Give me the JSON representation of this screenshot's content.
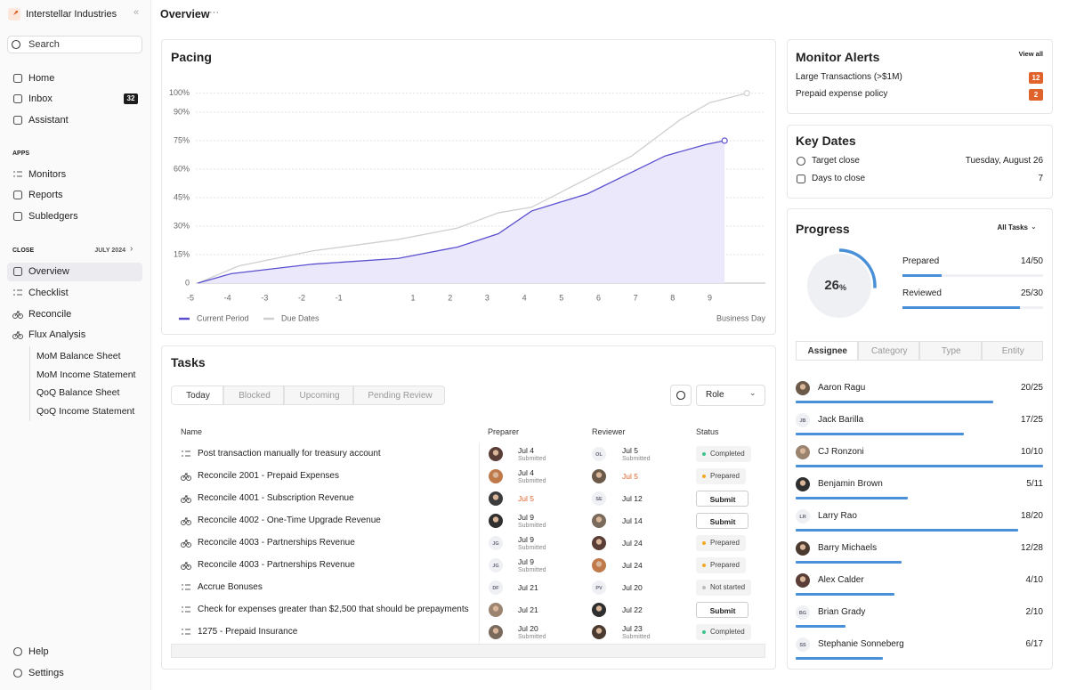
{
  "sidebar": {
    "org": "Interstellar Industries",
    "search": "Search",
    "nav": [
      {
        "label": "Home"
      },
      {
        "label": "Inbox",
        "badge": "32"
      },
      {
        "label": "Assistant"
      }
    ],
    "apps_heading": "APPS",
    "apps": [
      "Monitors",
      "Reports",
      "Subledgers"
    ],
    "close_heading": "CLOSE",
    "close_period": "JULY 2024",
    "close_items": [
      {
        "label": "Overview",
        "active": true
      },
      {
        "label": "Checklist"
      },
      {
        "label": "Reconcile"
      },
      {
        "label": "Flux Analysis"
      }
    ],
    "flux_reports": [
      "MoM Balance Sheet",
      "MoM Income Statement",
      "QoQ Balance Sheet",
      "QoQ Income Statement"
    ],
    "footer": [
      "Help",
      "Settings"
    ]
  },
  "header": {
    "title": "Overview"
  },
  "chart_data": {
    "type": "line",
    "title": "Pacing",
    "x_label": "Business Day",
    "xlim": [
      -5,
      10.5
    ],
    "xticks": [
      -5,
      -4,
      -3,
      -2,
      -1,
      1,
      2,
      3,
      4,
      5,
      6,
      7,
      8,
      9
    ],
    "ylim": [
      0,
      105
    ],
    "yticks": [
      0,
      {
        "value": 15,
        "label": "15%"
      },
      {
        "value": 30,
        "label": "30%"
      },
      {
        "value": 45,
        "label": "45%"
      },
      {
        "value": 60,
        "label": "60%"
      },
      {
        "value": 75,
        "label": "75%"
      },
      {
        "value": 90,
        "label": "90%"
      },
      {
        "value": 100,
        "label": "100%"
      }
    ],
    "grid": true,
    "series": [
      {
        "name": "Current Period",
        "color": "#5b4fcf",
        "fill": "#ebe8fb",
        "x": [
          -4.8,
          -3.9,
          -1.7,
          0.6,
          2.2,
          3.3,
          4.2,
          5.7,
          7.8,
          8.9,
          9.4
        ],
        "values": [
          0,
          5,
          10,
          13,
          19,
          26,
          38,
          47,
          67,
          73,
          75
        ]
      },
      {
        "name": "Due Dates",
        "color": "#cfcfcf",
        "x": [
          -4.8,
          -3.7,
          -1.7,
          0.6,
          2.2,
          3.3,
          4.2,
          5.2,
          6.9,
          8.2,
          9,
          10
        ],
        "values": [
          0,
          9,
          17,
          23,
          29,
          37,
          40,
          50,
          67,
          86,
          95,
          100
        ]
      }
    ]
  },
  "tasks": {
    "title": "Tasks",
    "tabs": [
      {
        "label": "Today",
        "active": true
      },
      {
        "label": "Blocked"
      },
      {
        "label": "Upcoming"
      },
      {
        "label": "Pending Review"
      }
    ],
    "role": "Role",
    "columns": [
      "Name",
      "Preparer",
      "Reviewer",
      "Status"
    ],
    "rows": [
      {
        "name": "Post transaction manually for treasury account",
        "icon": "checklist",
        "preparer": {
          "date": "Jul 4",
          "note": "Submitted"
        },
        "reviewer": {
          "initials": "OL",
          "date": "Jul 5",
          "note": "Submitted"
        },
        "status": {
          "label": "Completed",
          "dot": "#3cc48f"
        }
      },
      {
        "name": "Reconcile 2001 - Prepaid Expenses",
        "icon": "reconcile",
        "preparer": {
          "date": "Jul 4",
          "note": "Submitted"
        },
        "reviewer": {
          "date": "Jul 5",
          "color": "#e0632b"
        },
        "status": {
          "label": "Prepared",
          "dot": "#f5a623"
        }
      },
      {
        "name": "Reconcile 4001 - Subscription Revenue",
        "icon": "reconcile",
        "preparer": {
          "date": "Jul 5",
          "color": "#e0632b"
        },
        "reviewer": {
          "initials": "SE",
          "date": "Jul 12"
        },
        "status": {
          "label": "Submit",
          "button": true
        }
      },
      {
        "name": "Reconcile 4002 - One-Time Upgrade Revenue",
        "icon": "reconcile",
        "preparer": {
          "date": "Jul 9",
          "note": "Submitted"
        },
        "reviewer": {
          "date": "Jul 14"
        },
        "status": {
          "label": "Submit",
          "button": true
        }
      },
      {
        "name": "Reconcile 4003 - Partnerships Revenue",
        "icon": "reconcile",
        "preparer": {
          "initials": "JG",
          "date": "Jul 9",
          "note": "Submitted"
        },
        "reviewer": {
          "date": "Jul 24"
        },
        "status": {
          "label": "Prepared",
          "dot": "#f5a623"
        }
      },
      {
        "name": "Reconcile 4003 - Partnerships Revenue",
        "icon": "reconcile",
        "preparer": {
          "initials": "JG",
          "date": "Jul 9",
          "note": "Submitted"
        },
        "reviewer": {
          "date": "Jul 24"
        },
        "status": {
          "label": "Prepared",
          "dot": "#f5a623"
        }
      },
      {
        "name": "Accrue Bonuses",
        "icon": "checklist",
        "preparer": {
          "initials": "DF",
          "date": "Jul 21"
        },
        "reviewer": {
          "initials": "PV",
          "date": "Jul 20"
        },
        "status": {
          "label": "Not started",
          "dot": "#bdbdbd"
        }
      },
      {
        "name": "Check for expenses greater than $2,500 that should be prepayments",
        "icon": "checklist",
        "preparer": {
          "date": "Jul 21"
        },
        "reviewer": {
          "date": "Jul 22"
        },
        "status": {
          "label": "Submit",
          "button": true
        }
      },
      {
        "name": "1275 - Prepaid Insurance",
        "icon": "checklist",
        "preparer": {
          "date": "Jul 20",
          "note": "Submitted"
        },
        "reviewer": {
          "date": "Jul 23",
          "note": "Submitted"
        },
        "status": {
          "label": "Completed",
          "dot": "#3cc48f"
        }
      }
    ]
  },
  "alerts": {
    "title": "Monitor Alerts",
    "link": "View all",
    "items": [
      {
        "label": "Large Transactions (>$1M)",
        "count": "12"
      },
      {
        "label": "Prepaid expense policy",
        "count": "2"
      }
    ]
  },
  "key_dates": {
    "title": "Key Dates",
    "items": [
      {
        "label": "Target close",
        "value": "Tuesday, August 26"
      },
      {
        "label": "Days to close",
        "value": "7"
      }
    ]
  },
  "progress": {
    "title": "Progress",
    "filter": "All Tasks",
    "percent": 26,
    "percent_unit": "%",
    "metrics": [
      {
        "label": "Prepared",
        "value": "14/50"
      },
      {
        "label": "Reviewed",
        "value": "25/30"
      }
    ],
    "tabs": [
      {
        "label": "Assignee",
        "active": true
      },
      {
        "label": "Category"
      },
      {
        "label": "Type"
      },
      {
        "label": "Entity"
      }
    ],
    "assignees": [
      {
        "name": "Aaron Ragu",
        "value": "20/25"
      },
      {
        "name": "Jack Barilla",
        "initials": "JB",
        "value": "17/25"
      },
      {
        "name": "CJ Ronzoni",
        "value": "10/10"
      },
      {
        "name": "Benjamin Brown",
        "value": "5/11"
      },
      {
        "name": "Larry Rao",
        "initials": "LR",
        "value": "18/20"
      },
      {
        "name": "Barry Michaels",
        "value": "12/28"
      },
      {
        "name": "Alex Calder",
        "value": "4/10"
      },
      {
        "name": "Brian Grady",
        "initials": "BG",
        "value": "2/10"
      },
      {
        "name": "Stephanie Sonneberg",
        "initials": "SS",
        "value": "6/17"
      }
    ]
  }
}
